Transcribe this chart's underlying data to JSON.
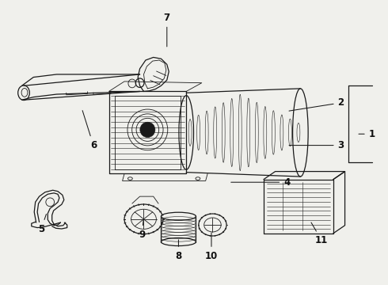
{
  "background_color": "#f0f0ec",
  "line_color": "#1a1a1a",
  "label_color": "#111111",
  "fig_width": 4.9,
  "fig_height": 3.6,
  "dpi": 100,
  "label_targets": {
    "1": [
      0.96,
      0.53,
      0.92,
      0.53
    ],
    "2": [
      0.88,
      0.64,
      0.74,
      0.61
    ],
    "3": [
      0.88,
      0.49,
      0.74,
      0.49
    ],
    "4": [
      0.74,
      0.36,
      0.59,
      0.36
    ],
    "5": [
      0.105,
      0.195,
      0.12,
      0.255
    ],
    "6": [
      0.24,
      0.49,
      0.21,
      0.62
    ],
    "7": [
      0.43,
      0.94,
      0.43,
      0.83
    ],
    "8": [
      0.46,
      0.1,
      0.46,
      0.165
    ],
    "9": [
      0.365,
      0.175,
      0.37,
      0.235
    ],
    "10": [
      0.545,
      0.1,
      0.545,
      0.19
    ],
    "11": [
      0.83,
      0.155,
      0.8,
      0.225
    ]
  }
}
